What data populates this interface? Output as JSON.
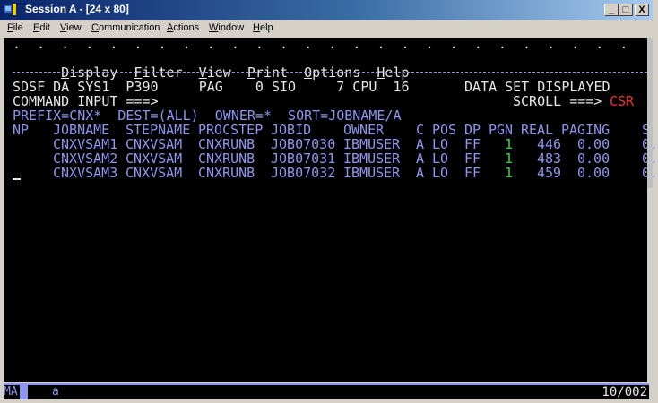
{
  "window": {
    "title": "Session A - [24 x 80]",
    "minimize_label": "_",
    "maximize_label": "□",
    "close_label": "X"
  },
  "menubar": [
    {
      "label": "File",
      "key": "F",
      "rest": "ile"
    },
    {
      "label": "Edit",
      "key": "E",
      "rest": "dit"
    },
    {
      "label": "View",
      "key": "V",
      "rest": "iew"
    },
    {
      "label": "Communication",
      "key": "C",
      "rest": "ommunication"
    },
    {
      "label": "Actions",
      "key": "A",
      "rest": "ctions"
    },
    {
      "label": "Window",
      "key": "W",
      "rest": "indow"
    },
    {
      "label": "Help",
      "key": "H",
      "rest": "elp"
    }
  ],
  "terminal": {
    "dots": ".  .  .  .  .  .  .  .  .  .  .  .  .  .  .  .  .  .  .  .  .  .  .  .  .  .",
    "menu": [
      {
        "key": "D",
        "rest": "isplay"
      },
      {
        "key": "F",
        "rest": "ilter"
      },
      {
        "key": "V",
        "rest": "iew"
      },
      {
        "key": "P",
        "rest": "rint"
      },
      {
        "key": "O",
        "rest": "ptions"
      },
      {
        "key": "H",
        "rest": "elp"
      }
    ],
    "header": "SDSF DA SYS1  P390     PAG    0 SIO     7 CPU  16",
    "status_message": "DATA SET DISPLAYED",
    "command_label": "COMMAND INPUT ===>",
    "scroll_label": "SCROLL ===>",
    "scroll_value": "CSR",
    "filters": "PREFIX=CNX*  DEST=(ALL)  OWNER=*  SORT=JOBNAME/A",
    "columns": [
      "NP",
      "JOBNAME",
      "STEPNAME",
      "PROCSTEP",
      "JOBID",
      "OWNER",
      "C",
      "POS",
      "DP",
      "PGN",
      "REAL",
      "PAGING",
      "S"
    ],
    "rows": [
      {
        "np": "",
        "jobname": "CNXVSAM1",
        "stepname": "CNXVSAM",
        "procstep": "CNXRUNB",
        "jobid": "JOB07030",
        "owner": "IBMUSER",
        "c": "A",
        "pos": "LO",
        "dp": "FF",
        "pgn": "1",
        "real": "446",
        "paging": "0.00",
        "s": "0."
      },
      {
        "np": "",
        "jobname": "CNXVSAM2",
        "stepname": "CNXVSAM",
        "procstep": "CNXRUNB",
        "jobid": "JOB07031",
        "owner": "IBMUSER",
        "c": "A",
        "pos": "LO",
        "dp": "FF",
        "pgn": "1",
        "real": "483",
        "paging": "0.00",
        "s": "0."
      },
      {
        "np": "",
        "jobname": "CNXVSAM3",
        "stepname": "CNXVSAM",
        "procstep": "CNXRUNB",
        "jobid": "JOB07032",
        "owner": "IBMUSER",
        "c": "A",
        "pos": "LO",
        "dp": "FF",
        "pgn": "1",
        "real": "459",
        "paging": "0.00",
        "s": "0."
      }
    ]
  },
  "statusbar": {
    "mode": "MA",
    "input_indicator": "a",
    "cursor_position": "10/002"
  },
  "colors": {
    "text": "#e8e8e8",
    "field": "#8c96ee",
    "highlight": "#3cd23c",
    "alert": "#f03030"
  }
}
